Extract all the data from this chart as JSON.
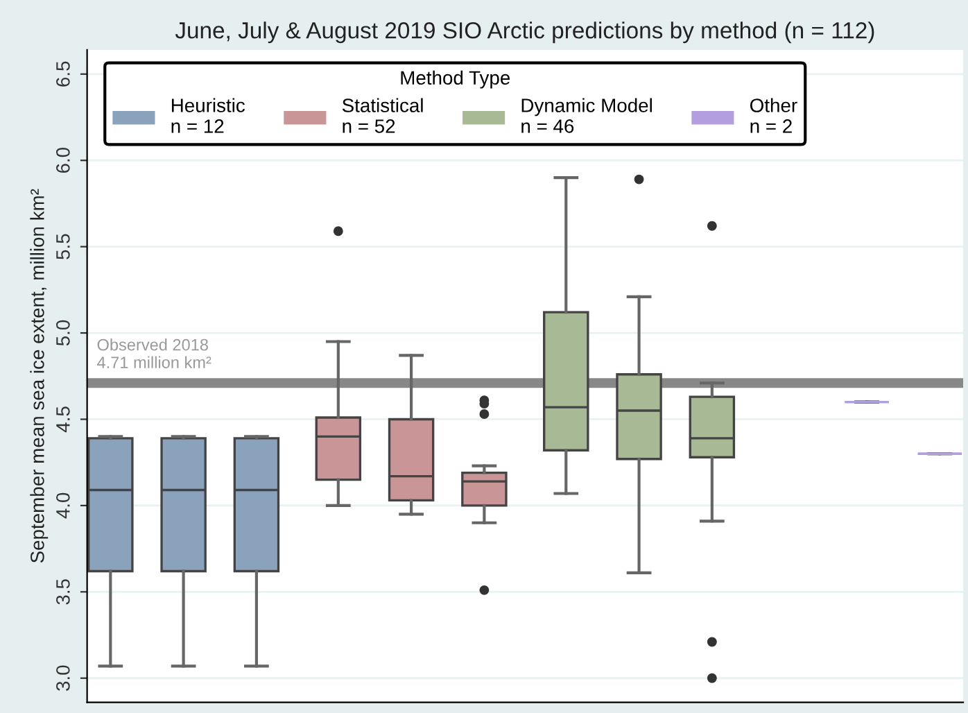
{
  "chart_data": {
    "type": "box",
    "title": "June, July & August 2019 SIO Arctic predictions by method (n = 112)",
    "ylabel": "September mean sea ice extent, million km²",
    "legend_title": "Method Type",
    "categories": [
      null,
      null,
      null,
      null,
      null,
      null,
      null,
      null,
      null,
      null,
      null,
      null
    ],
    "series": [
      {
        "name": "Heuristic\nn = 12",
        "color": "#8aa2bb",
        "boxes": [
          {
            "low": 3.07,
            "q1": 3.62,
            "median": 4.09,
            "q3": 4.39,
            "high": 4.4
          },
          {
            "low": 3.07,
            "q1": 3.62,
            "median": 4.09,
            "q3": 4.39,
            "high": 4.4
          },
          {
            "low": 3.07,
            "q1": 3.62,
            "median": 4.09,
            "q3": 4.39,
            "high": 4.4
          },
          null,
          null,
          null,
          null,
          null,
          null,
          null,
          null,
          null
        ]
      },
      {
        "name": "Statistical\nn = 52",
        "color": "#c99597",
        "boxes": [
          null,
          null,
          null,
          {
            "low": 4.0,
            "q1": 4.15,
            "median": 4.4,
            "q3": 4.51,
            "high": 4.95,
            "outliers": [
              5.59
            ]
          },
          {
            "low": 3.95,
            "q1": 4.03,
            "median": 4.17,
            "q3": 4.5,
            "high": 4.87
          },
          {
            "low": 3.9,
            "q1": 4.0,
            "median": 4.14,
            "q3": 4.19,
            "high": 4.23,
            "outliers": [
              4.61,
              4.59,
              4.53,
              3.51
            ]
          },
          null,
          null,
          null,
          null,
          null,
          null
        ]
      },
      {
        "name": "Dynamic Model\nn = 46",
        "color": "#a8b995",
        "boxes": [
          null,
          null,
          null,
          null,
          null,
          null,
          {
            "low": 4.07,
            "q1": 4.32,
            "median": 4.57,
            "q3": 5.12,
            "high": 5.9
          },
          {
            "low": 3.61,
            "q1": 4.27,
            "median": 4.55,
            "q3": 4.76,
            "high": 5.21,
            "outliers": [
              5.89
            ]
          },
          {
            "low": 3.91,
            "q1": 4.28,
            "median": 4.39,
            "q3": 4.63,
            "high": 4.71,
            "outliers": [
              5.62,
              3.21,
              3.0
            ]
          },
          null,
          null,
          null
        ]
      },
      {
        "name": "Other\nn = 2",
        "color": "#b39ee0",
        "boxes": [
          null,
          null,
          null,
          null,
          null,
          null,
          null,
          null,
          null,
          null,
          {
            "low": 4.6,
            "q1": 4.6,
            "median": 4.6,
            "q3": 4.6,
            "high": 4.6
          },
          {
            "low": 4.3,
            "q1": 4.3,
            "median": 4.3,
            "q3": 4.3,
            "high": 4.3
          }
        ]
      }
    ],
    "ylim": [
      2.86,
      6.64
    ],
    "yticks": [
      {
        "value": 3,
        "label": "3.0"
      },
      {
        "value": 3.5,
        "label": "3.5"
      },
      {
        "value": 4,
        "label": "4.0"
      },
      {
        "value": 4.5,
        "label": "4.5"
      },
      {
        "value": 5,
        "label": "5.0"
      },
      {
        "value": 5.5,
        "label": "5.5"
      },
      {
        "value": 6,
        "label": "6.0"
      },
      {
        "value": 6.5,
        "label": "6.5"
      }
    ],
    "ref_lines": [
      {
        "axis": "y",
        "value": 4.71,
        "label": "Observed 2018\n4.71 million km²",
        "color": "#888888"
      }
    ],
    "grid": "y",
    "legend": "top",
    "tick_labels": "y"
  }
}
